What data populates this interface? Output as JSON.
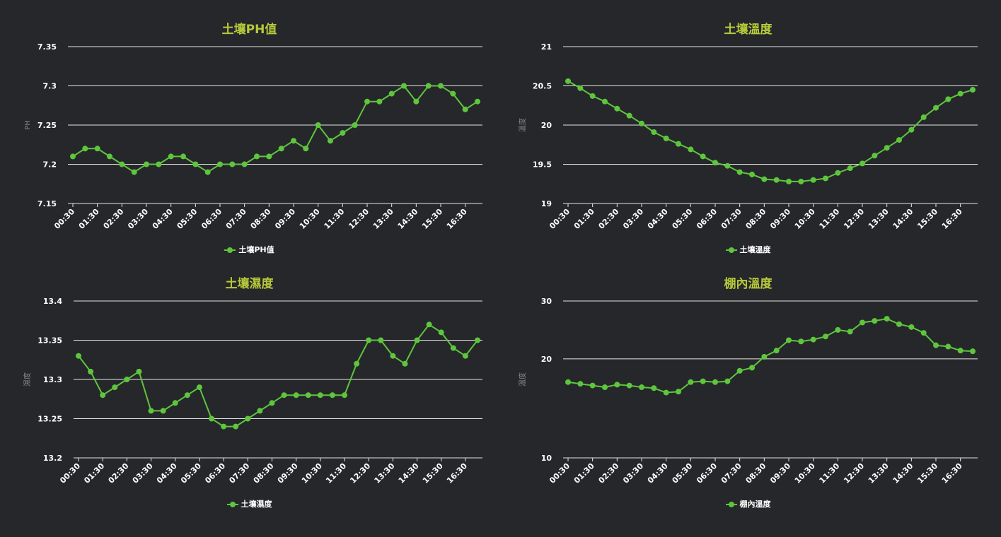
{
  "colors": {
    "series": "#5ec63c",
    "title": "#b7c93a",
    "grid": "#e6e6e6",
    "tick": "#ffffff",
    "axis_title": "#888888",
    "background": "#26272b"
  },
  "chart_data": [
    {
      "type": "line",
      "title": "土壤PH值",
      "ylabel": "PH",
      "xlabel": "",
      "ylim": [
        7.15,
        7.35
      ],
      "yticks": [
        "7.15",
        "7.2",
        "7.25",
        "7.3",
        "7.35"
      ],
      "x": [
        "00:30",
        "01:00",
        "01:30",
        "02:00",
        "02:30",
        "03:00",
        "03:30",
        "04:00",
        "04:30",
        "05:00",
        "05:30",
        "06:00",
        "06:30",
        "07:00",
        "07:30",
        "08:00",
        "08:30",
        "09:00",
        "09:30",
        "10:00",
        "10:30",
        "11:00",
        "11:30",
        "12:00",
        "12:30",
        "13:00",
        "13:30",
        "14:00",
        "14:30",
        "15:00",
        "15:30",
        "16:00",
        "16:30",
        "17:00"
      ],
      "xticks": [
        "00:30",
        "01:30",
        "02:30",
        "03:30",
        "04:30",
        "05:30",
        "06:30",
        "07:30",
        "08:30",
        "09:30",
        "10:30",
        "11:30",
        "12:30",
        "13:30",
        "14:30",
        "15:30",
        "16:30"
      ],
      "series": [
        {
          "name": "土壤PH值",
          "values": [
            7.21,
            7.22,
            7.22,
            7.21,
            7.2,
            7.19,
            7.2,
            7.2,
            7.21,
            7.21,
            7.2,
            7.19,
            7.2,
            7.2,
            7.2,
            7.21,
            7.21,
            7.22,
            7.23,
            7.22,
            7.25,
            7.23,
            7.24,
            7.25,
            7.28,
            7.28,
            7.29,
            7.3,
            7.28,
            7.3,
            7.3,
            7.29,
            7.27,
            7.28
          ]
        }
      ],
      "grid": true,
      "legend": "bottom-center"
    },
    {
      "type": "line",
      "title": "土壤溫度",
      "ylabel": "溫度",
      "xlabel": "",
      "ylim": [
        19,
        21
      ],
      "yticks": [
        "19",
        "19.5",
        "20",
        "20.5",
        "21"
      ],
      "x": [
        "00:30",
        "01:00",
        "01:30",
        "02:00",
        "02:30",
        "03:00",
        "03:30",
        "04:00",
        "04:30",
        "05:00",
        "05:30",
        "06:00",
        "06:30",
        "07:00",
        "07:30",
        "08:00",
        "08:30",
        "09:00",
        "09:30",
        "10:00",
        "10:30",
        "11:00",
        "11:30",
        "12:00",
        "12:30",
        "13:00",
        "13:30",
        "14:00",
        "14:30",
        "15:00",
        "15:30",
        "16:00",
        "16:30",
        "17:00"
      ],
      "xticks": [
        "00:30",
        "01:30",
        "02:30",
        "03:30",
        "04:30",
        "05:30",
        "06:30",
        "07:30",
        "08:30",
        "09:30",
        "10:30",
        "11:30",
        "12:30",
        "13:30",
        "14:30",
        "15:30",
        "16:30"
      ],
      "series": [
        {
          "name": "土壤溫度",
          "values": [
            20.56,
            20.47,
            20.37,
            20.3,
            20.21,
            20.12,
            20.02,
            19.91,
            19.83,
            19.76,
            19.69,
            19.6,
            19.52,
            19.48,
            19.4,
            19.37,
            19.31,
            19.3,
            19.28,
            19.28,
            19.3,
            19.32,
            19.39,
            19.45,
            19.51,
            19.61,
            19.71,
            19.81,
            19.94,
            20.1,
            20.22,
            20.33,
            20.4,
            20.45
          ]
        }
      ],
      "grid": true,
      "legend": "bottom-center"
    },
    {
      "type": "line",
      "title": "土壤濕度",
      "ylabel": "濕度",
      "xlabel": "",
      "ylim": [
        13.2,
        13.4
      ],
      "yticks": [
        "13.2",
        "13.25",
        "13.3",
        "13.35",
        "13.4"
      ],
      "x": [
        "00:30",
        "01:00",
        "01:30",
        "02:00",
        "02:30",
        "03:00",
        "03:30",
        "04:00",
        "04:30",
        "05:00",
        "05:30",
        "06:00",
        "06:30",
        "07:00",
        "07:30",
        "08:00",
        "08:30",
        "09:00",
        "09:30",
        "10:00",
        "10:30",
        "11:00",
        "11:30",
        "12:00",
        "12:30",
        "13:00",
        "13:30",
        "14:00",
        "14:30",
        "15:00",
        "15:30",
        "16:00",
        "16:30",
        "17:00"
      ],
      "xticks": [
        "00:30",
        "01:30",
        "02:30",
        "03:30",
        "04:30",
        "05:30",
        "06:30",
        "07:30",
        "08:30",
        "09:30",
        "10:30",
        "11:30",
        "12:30",
        "13:30",
        "14:30",
        "15:30",
        "16:30"
      ],
      "series": [
        {
          "name": "土壤濕度",
          "values": [
            13.33,
            13.31,
            13.28,
            13.29,
            13.3,
            13.31,
            13.26,
            13.26,
            13.27,
            13.28,
            13.29,
            13.25,
            13.24,
            13.24,
            13.25,
            13.26,
            13.27,
            13.28,
            13.28,
            13.28,
            13.28,
            13.28,
            13.28,
            13.32,
            13.35,
            13.35,
            13.33,
            13.32,
            13.35,
            13.37,
            13.36,
            13.34,
            13.33,
            13.35
          ]
        }
      ],
      "grid": true,
      "legend": "bottom-center"
    },
    {
      "type": "line",
      "title": "棚內溫度",
      "ylabel": "溫度",
      "xlabel": "",
      "ylim": [
        10,
        30
      ],
      "scale": "log",
      "yticks": [
        "10",
        "20",
        "30"
      ],
      "x": [
        "00:30",
        "01:00",
        "01:30",
        "02:00",
        "02:30",
        "03:00",
        "03:30",
        "04:00",
        "04:30",
        "05:00",
        "05:30",
        "06:00",
        "06:30",
        "07:00",
        "07:30",
        "08:00",
        "08:30",
        "09:00",
        "09:30",
        "10:00",
        "10:30",
        "11:00",
        "11:30",
        "12:00",
        "12:30",
        "13:00",
        "13:30",
        "14:00",
        "14:30",
        "15:00",
        "15:30",
        "16:00",
        "16:30",
        "17:00"
      ],
      "xticks": [
        "00:30",
        "01:30",
        "02:30",
        "03:30",
        "04:30",
        "05:30",
        "06:30",
        "07:30",
        "08:30",
        "09:30",
        "10:30",
        "11:30",
        "12:30",
        "13:30",
        "14:30",
        "15:30",
        "16:30"
      ],
      "series": [
        {
          "name": "棚內溫度",
          "values": [
            17.0,
            16.8,
            16.6,
            16.4,
            16.7,
            16.6,
            16.4,
            16.3,
            15.8,
            15.9,
            17.0,
            17.1,
            17.0,
            17.1,
            18.4,
            18.8,
            20.3,
            21.2,
            22.8,
            22.6,
            22.9,
            23.4,
            24.5,
            24.2,
            25.8,
            26.1,
            26.5,
            25.5,
            25.0,
            24.0,
            22.0,
            21.8,
            21.2,
            21.1
          ]
        }
      ],
      "grid": true,
      "legend": "bottom-center"
    }
  ]
}
